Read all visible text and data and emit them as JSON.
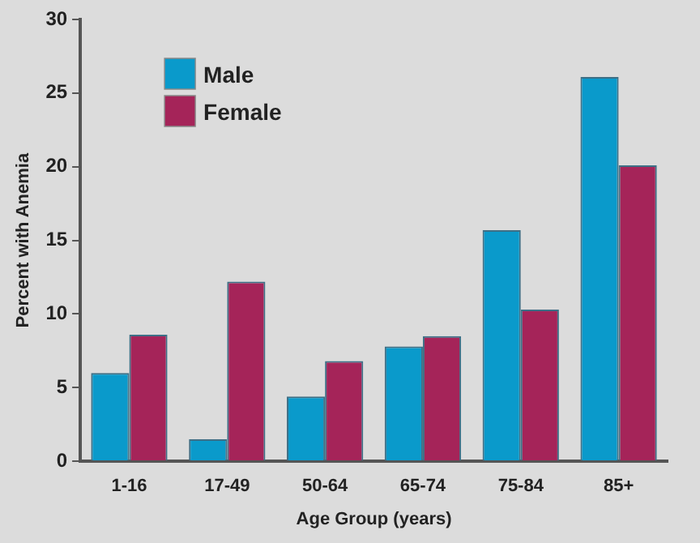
{
  "chart_data": {
    "type": "bar",
    "xlabel": "Age Group (years)",
    "ylabel": "Percent with Anemia",
    "categories": [
      "1-16",
      "17-49",
      "50-64",
      "65-74",
      "75-84",
      "85+"
    ],
    "series": [
      {
        "name": "Male",
        "color": "#0a9acb",
        "values": [
          6.0,
          1.5,
          4.4,
          7.8,
          15.7,
          26.1
        ]
      },
      {
        "name": "Female",
        "color": "#a52459",
        "values": [
          8.6,
          12.2,
          6.8,
          8.5,
          10.3,
          20.1
        ]
      }
    ],
    "ylim": [
      0,
      30
    ],
    "yticks": [
      0,
      5,
      10,
      15,
      20,
      25,
      30
    ],
    "grid": false,
    "legend": "top left"
  }
}
